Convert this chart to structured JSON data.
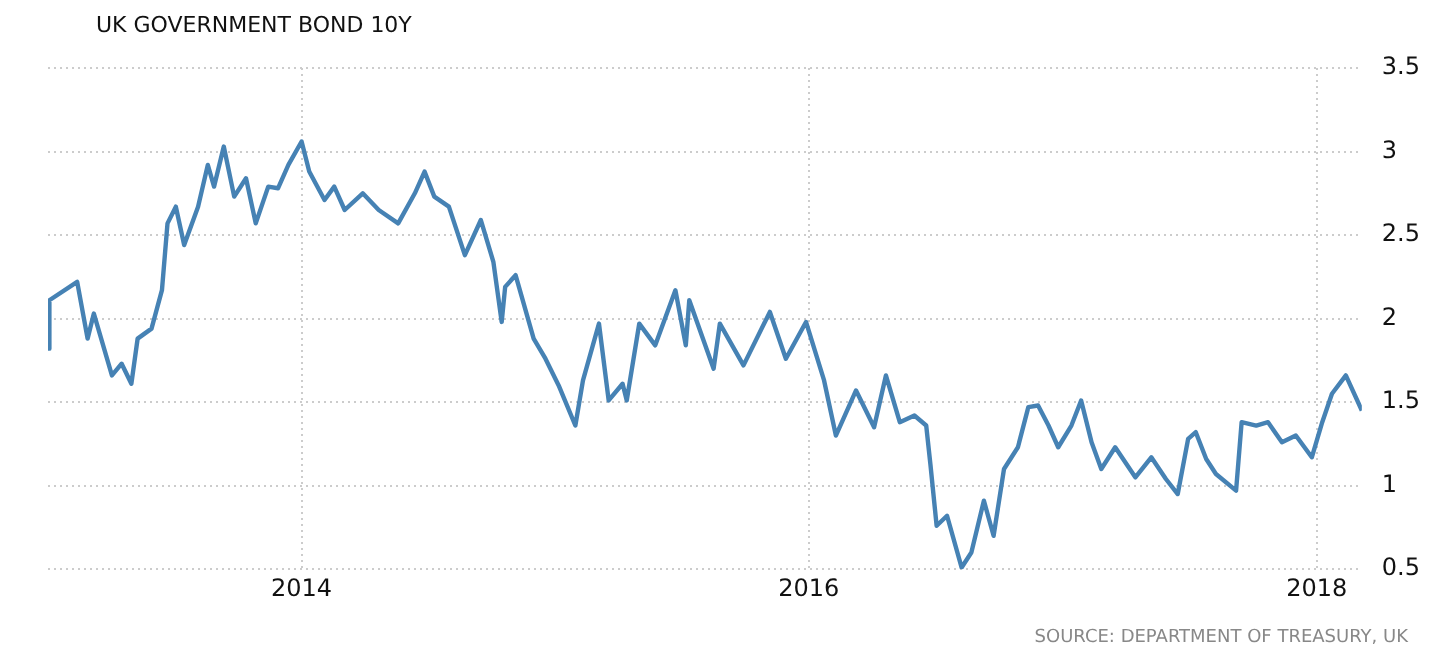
{
  "chart_data": {
    "type": "line",
    "title": "UK GOVERNMENT BOND 10Y",
    "annotations": [
      "SOURCE: DEPARTMENT OF TREASURY, UK"
    ],
    "x": [
      "2013-01-01",
      "2013-01-03",
      "2013-02-12",
      "2013-02-27",
      "2013-03-08",
      "2013-04-03",
      "2013-04-17",
      "2013-05-01",
      "2013-05-10",
      "2013-05-30",
      "2013-06-14",
      "2013-06-22",
      "2013-07-04",
      "2013-07-16",
      "2013-08-05",
      "2013-08-19",
      "2013-08-28",
      "2013-09-11",
      "2013-09-26",
      "2013-10-13",
      "2013-10-27",
      "2013-11-14",
      "2013-11-28",
      "2013-12-13",
      "2014-01-01",
      "2014-01-12",
      "2014-02-03",
      "2014-02-17",
      "2014-03-04",
      "2014-03-30",
      "2014-04-22",
      "2014-05-20",
      "2014-06-13",
      "2014-06-27",
      "2014-07-11",
      "2014-08-01",
      "2014-08-24",
      "2014-09-16",
      "2014-10-04",
      "2014-10-16",
      "2014-10-21",
      "2014-11-05",
      "2014-12-01",
      "2014-12-18",
      "2015-01-06",
      "2015-01-30",
      "2015-02-10",
      "2015-03-05",
      "2015-03-19",
      "2015-04-08",
      "2015-04-14",
      "2015-05-02",
      "2015-05-25",
      "2015-06-23",
      "2015-07-08",
      "2015-07-13",
      "2015-08-17",
      "2015-08-26",
      "2015-09-29",
      "2015-11-06",
      "2015-11-29",
      "2015-12-28",
      "2016-01-23",
      "2016-02-09",
      "2016-03-09",
      "2016-04-04",
      "2016-04-21",
      "2016-05-11",
      "2016-06-01",
      "2016-06-18",
      "2016-06-24",
      "2016-07-03",
      "2016-07-18",
      "2016-08-08",
      "2016-08-22",
      "2016-09-09",
      "2016-09-23",
      "2016-10-08",
      "2016-10-28",
      "2016-11-12",
      "2016-11-26",
      "2016-12-11",
      "2016-12-25",
      "2017-01-13",
      "2017-01-27",
      "2017-02-11",
      "2017-02-25",
      "2017-03-17",
      "2017-04-15",
      "2017-05-08",
      "2017-05-29",
      "2017-06-15",
      "2017-06-30",
      "2017-07-11",
      "2017-07-26",
      "2017-08-09",
      "2017-09-07",
      "2017-09-15",
      "2017-10-06",
      "2017-10-23",
      "2017-11-12",
      "2017-12-02",
      "2017-12-25",
      "2018-01-09",
      "2018-01-23",
      "2018-02-12",
      "2018-03-07"
    ],
    "series": [
      {
        "color": "#4682b4",
        "values": [
          1.82,
          2.11,
          2.22,
          1.88,
          2.03,
          1.66,
          1.73,
          1.61,
          1.88,
          1.94,
          2.17,
          2.57,
          2.67,
          2.44,
          2.67,
          2.92,
          2.79,
          3.03,
          2.73,
          2.84,
          2.57,
          2.79,
          2.78,
          2.92,
          3.06,
          2.88,
          2.71,
          2.79,
          2.65,
          2.75,
          2.65,
          2.57,
          2.75,
          2.88,
          2.73,
          2.67,
          2.38,
          2.59,
          2.34,
          1.98,
          2.19,
          2.26,
          1.88,
          1.76,
          1.6,
          1.36,
          1.63,
          1.97,
          1.51,
          1.61,
          1.51,
          1.97,
          1.84,
          2.17,
          1.84,
          2.11,
          1.7,
          1.97,
          1.72,
          2.04,
          1.76,
          1.98,
          1.63,
          1.3,
          1.57,
          1.35,
          1.66,
          1.38,
          1.42,
          1.36,
          1.13,
          0.76,
          0.82,
          0.51,
          0.6,
          0.91,
          0.7,
          1.1,
          1.23,
          1.47,
          1.48,
          1.36,
          1.23,
          1.36,
          1.51,
          1.26,
          1.1,
          1.23,
          1.05,
          1.17,
          1.04,
          0.95,
          1.28,
          1.32,
          1.16,
          1.07,
          0.97,
          1.38,
          1.36,
          1.38,
          1.26,
          1.3,
          1.17,
          1.38,
          1.55,
          1.66,
          1.45
        ]
      }
    ],
    "xlim": [
      "2013-01-01",
      "2018-03-07"
    ],
    "xticks": [
      "2014",
      "2016",
      "2018"
    ],
    "ylim": [
      0.5,
      3.5
    ],
    "yticks": [
      0.5,
      1,
      1.5,
      2,
      2.5,
      3,
      3.5
    ],
    "grid": true,
    "legend": false,
    "marker": "none",
    "line_style": "solid"
  }
}
